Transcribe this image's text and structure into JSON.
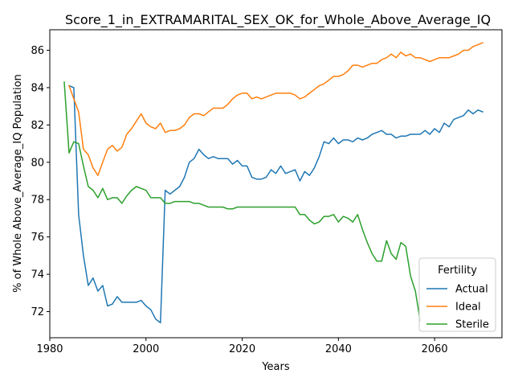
{
  "chart_data": {
    "type": "line",
    "title": "Score_1_in_EXTRAMARITAL_SEX_OK_for_Whole_Above_Average_IQ",
    "xlabel": "Years",
    "ylabel": "% of Whole Above_Average_IQ Population",
    "xlim": [
      1980,
      2074
    ],
    "ylim": [
      70.6,
      87.1
    ],
    "xticks": [
      1980,
      2000,
      2020,
      2040,
      2060
    ],
    "yticks": [
      72,
      74,
      76,
      78,
      80,
      82,
      84,
      86
    ],
    "grid": false,
    "legend": {
      "title": "Fertility",
      "placement": "lower right"
    },
    "series": [
      {
        "name": "Actual",
        "color": "#1f77b4",
        "x": [
          1984,
          1985,
          1986,
          1987,
          1988,
          1989,
          1990,
          1991,
          1992,
          1993,
          1994,
          1995,
          1996,
          1997,
          1998,
          1999,
          2000,
          2001,
          2002,
          2003,
          2004,
          2005,
          2006,
          2007,
          2008,
          2009,
          2010,
          2011,
          2012,
          2013,
          2014,
          2015,
          2016,
          2017,
          2018,
          2019,
          2020,
          2021,
          2022,
          2023,
          2024,
          2025,
          2026,
          2027,
          2028,
          2029,
          2030,
          2031,
          2032,
          2033,
          2034,
          2035,
          2036,
          2037,
          2038,
          2039,
          2040,
          2041,
          2042,
          2043,
          2044,
          2045,
          2046,
          2047,
          2048,
          2049,
          2050,
          2051,
          2052,
          2053,
          2054,
          2055,
          2056,
          2057,
          2058,
          2059,
          2060,
          2061,
          2062,
          2063,
          2064,
          2065,
          2066,
          2067,
          2068,
          2069,
          2070
        ],
        "values": [
          84.1,
          84.0,
          77.2,
          75.0,
          73.4,
          73.8,
          73.1,
          73.4,
          72.3,
          72.4,
          72.8,
          72.5,
          72.5,
          72.5,
          72.5,
          72.6,
          72.3,
          72.1,
          71.6,
          71.4,
          78.5,
          78.3,
          78.5,
          78.7,
          79.2,
          80.0,
          80.2,
          80.7,
          80.4,
          80.2,
          80.3,
          80.2,
          80.2,
          80.2,
          79.9,
          80.1,
          79.8,
          79.8,
          79.2,
          79.1,
          79.1,
          79.2,
          79.6,
          79.4,
          79.8,
          79.4,
          79.5,
          79.6,
          79.0,
          79.5,
          79.3,
          79.7,
          80.3,
          81.1,
          81.0,
          81.3,
          81.0,
          81.2,
          81.2,
          81.1,
          81.3,
          81.2,
          81.3,
          81.5,
          81.6,
          81.7,
          81.5,
          81.5,
          81.3,
          81.4,
          81.4,
          81.5,
          81.5,
          81.5,
          81.7,
          81.5,
          81.8,
          81.6,
          82.1,
          81.9,
          82.3,
          82.4,
          82.5,
          82.8,
          82.6,
          82.8,
          82.7
        ]
      },
      {
        "name": "Ideal",
        "color": "#ff7f0e",
        "x": [
          1984,
          1985,
          1986,
          1987,
          1988,
          1989,
          1990,
          1991,
          1992,
          1993,
          1994,
          1995,
          1996,
          1997,
          1998,
          1999,
          2000,
          2001,
          2002,
          2003,
          2004,
          2005,
          2006,
          2007,
          2008,
          2009,
          2010,
          2011,
          2012,
          2013,
          2014,
          2015,
          2016,
          2017,
          2018,
          2019,
          2020,
          2021,
          2022,
          2023,
          2024,
          2025,
          2026,
          2027,
          2028,
          2029,
          2030,
          2031,
          2032,
          2033,
          2034,
          2035,
          2036,
          2037,
          2038,
          2039,
          2040,
          2041,
          2042,
          2043,
          2044,
          2045,
          2046,
          2047,
          2048,
          2049,
          2050,
          2051,
          2052,
          2053,
          2054,
          2055,
          2056,
          2057,
          2058,
          2059,
          2060,
          2061,
          2062,
          2063,
          2064,
          2065,
          2066,
          2067,
          2068,
          2069,
          2070
        ],
        "values": [
          84.1,
          83.4,
          82.7,
          80.7,
          80.4,
          79.7,
          79.3,
          80.0,
          80.7,
          80.9,
          80.6,
          80.8,
          81.5,
          81.8,
          82.2,
          82.6,
          82.1,
          81.9,
          81.8,
          82.1,
          81.6,
          81.7,
          81.7,
          81.8,
          82.0,
          82.4,
          82.6,
          82.6,
          82.5,
          82.7,
          82.9,
          82.9,
          82.9,
          83.1,
          83.4,
          83.6,
          83.7,
          83.7,
          83.4,
          83.5,
          83.4,
          83.5,
          83.6,
          83.7,
          83.7,
          83.7,
          83.7,
          83.6,
          83.4,
          83.5,
          83.7,
          83.9,
          84.1,
          84.2,
          84.4,
          84.6,
          84.6,
          84.7,
          84.9,
          85.2,
          85.2,
          85.1,
          85.2,
          85.3,
          85.3,
          85.5,
          85.6,
          85.8,
          85.6,
          85.9,
          85.7,
          85.8,
          85.6,
          85.6,
          85.5,
          85.4,
          85.5,
          85.6,
          85.6,
          85.6,
          85.7,
          85.8,
          86.0,
          86.0,
          86.2,
          86.3,
          86.4
        ]
      },
      {
        "name": "Sterile",
        "color": "#2ca02c",
        "x": [
          1983,
          1984,
          1985,
          1986,
          1987,
          1988,
          1989,
          1990,
          1991,
          1992,
          1993,
          1994,
          1995,
          1996,
          1997,
          1998,
          1999,
          2000,
          2001,
          2002,
          2003,
          2004,
          2005,
          2006,
          2007,
          2008,
          2009,
          2010,
          2011,
          2012,
          2013,
          2014,
          2015,
          2016,
          2017,
          2018,
          2019,
          2020,
          2021,
          2022,
          2023,
          2024,
          2025,
          2026,
          2027,
          2028,
          2029,
          2030,
          2031,
          2032,
          2033,
          2034,
          2035,
          2036,
          2037,
          2038,
          2039,
          2040,
          2041,
          2042,
          2043,
          2044,
          2045,
          2046,
          2047,
          2048,
          2049,
          2050,
          2051,
          2052,
          2053,
          2054,
          2055,
          2056,
          2057
        ],
        "values": [
          84.3,
          80.5,
          81.1,
          81.0,
          79.8,
          78.7,
          78.5,
          78.1,
          78.6,
          78.0,
          78.1,
          78.1,
          77.8,
          78.2,
          78.5,
          78.7,
          78.6,
          78.5,
          78.1,
          78.1,
          78.1,
          77.8,
          77.8,
          77.9,
          77.9,
          77.9,
          77.9,
          77.8,
          77.8,
          77.7,
          77.6,
          77.6,
          77.6,
          77.6,
          77.5,
          77.5,
          77.6,
          77.6,
          77.6,
          77.6,
          77.6,
          77.6,
          77.6,
          77.6,
          77.6,
          77.6,
          77.6,
          77.6,
          77.6,
          77.2,
          77.2,
          76.9,
          76.7,
          76.8,
          77.1,
          77.1,
          77.2,
          76.8,
          77.1,
          77.0,
          76.8,
          77.2,
          76.4,
          75.7,
          75.1,
          74.7,
          74.7,
          75.8,
          75.1,
          74.8,
          75.7,
          75.5,
          73.9,
          73.1,
          71.5
        ]
      }
    ]
  }
}
